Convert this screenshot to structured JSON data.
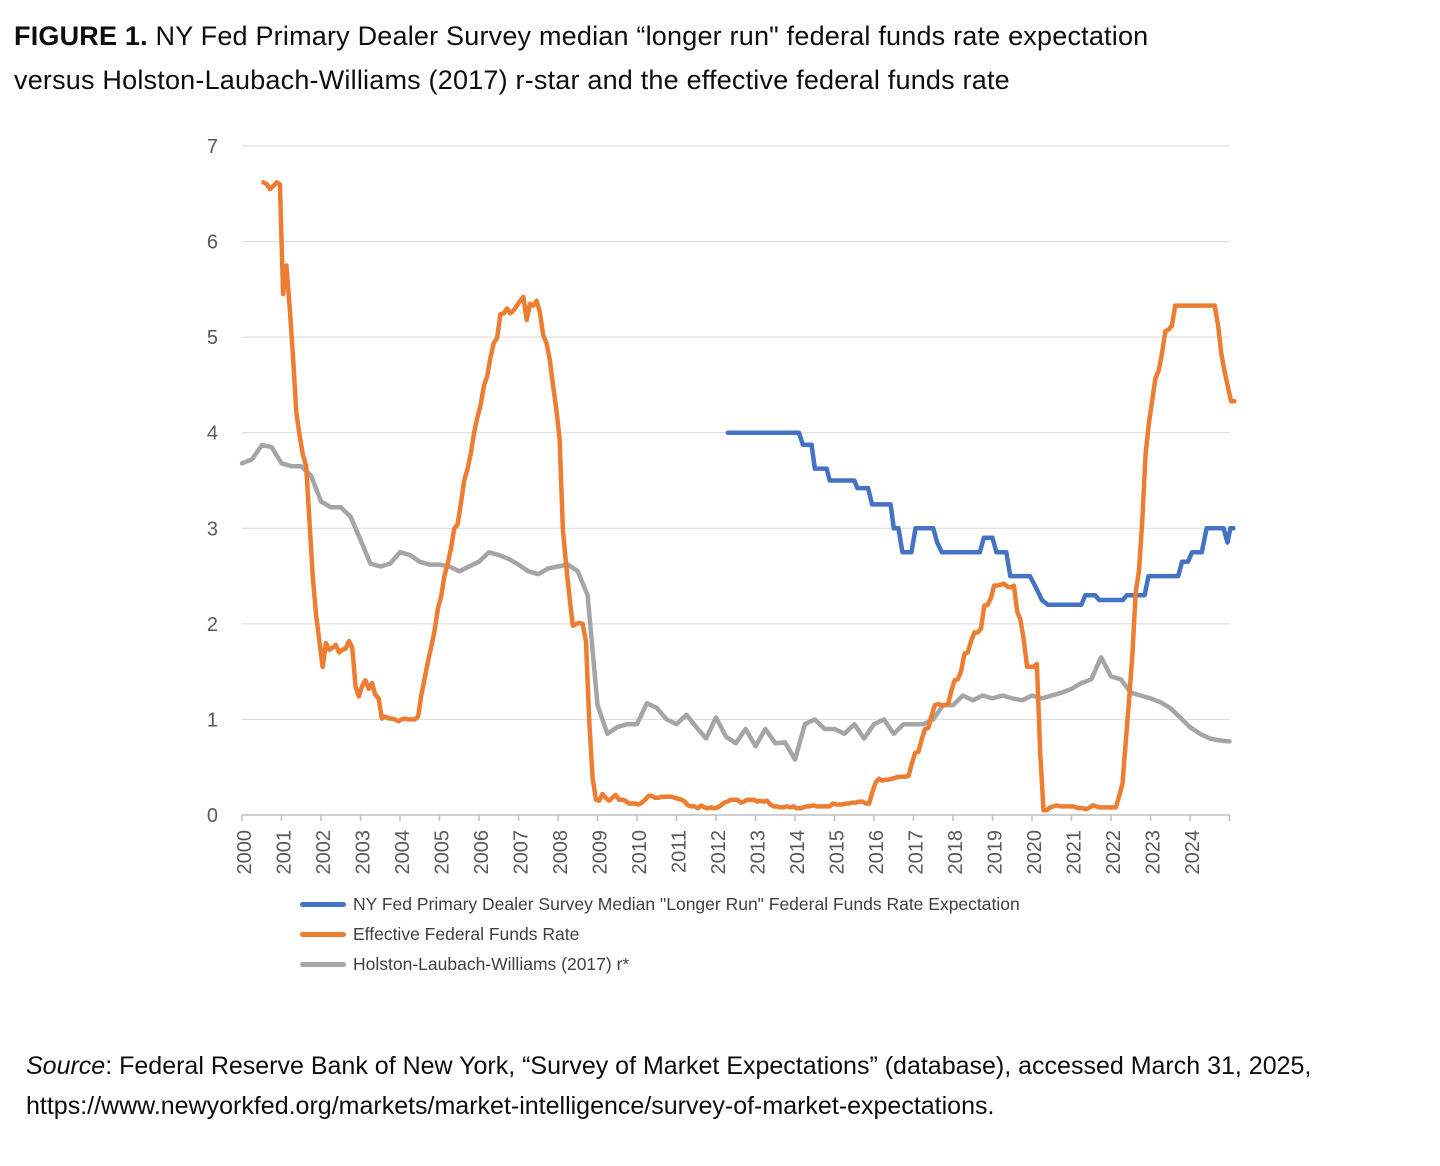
{
  "header": {
    "figure_label": "FIGURE 1.",
    "title_line1": "NY Fed Primary Dealer Survey median “longer run\" federal funds rate expectation",
    "title_line2": "versus Holston-Laubach-Williams (2017) r-star and the effective federal funds rate"
  },
  "source": {
    "label": "Source",
    "after_label": ": Federal Reserve Bank of New York, “Survey of Market Expectations” (database), accessed March 31, 2025,",
    "line2": "https://www.newyorkfed.org/markets/market-intelligence/survey-of-market-expectations."
  },
  "chart_data": {
    "type": "line",
    "title": "FIGURE 1. NY Fed Primary Dealer Survey median “longer run\" federal funds rate expectation versus Holston-Laubach-Williams (2017) r-star and the effective federal funds rate",
    "xlabel": "",
    "ylabel": "",
    "axis": {
      "y_min": 0,
      "y_max": 7,
      "y_ticks": [
        0,
        1,
        2,
        3,
        4,
        5,
        6,
        7
      ],
      "x_min": 2000,
      "x_max": 2025,
      "x_tick_years": [
        2000,
        2001,
        2002,
        2003,
        2004,
        2005,
        2006,
        2007,
        2008,
        2009,
        2010,
        2011,
        2012,
        2013,
        2014,
        2015,
        2016,
        2017,
        2018,
        2019,
        2020,
        2021,
        2022,
        2023,
        2024
      ],
      "grid": "horizontal",
      "legend_position": "bottom-left"
    },
    "colors": {
      "grid": "#d9d9d9",
      "axis": "#bfbfbf",
      "tick_label": "#595959"
    },
    "series": [
      {
        "id": "survey",
        "label": "NY Fed Primary Dealer Survey Median \"Longer Run\" Federal Funds Rate Expectation",
        "color": "#4472C4",
        "points": [
          [
            2012.3,
            4.0
          ],
          [
            2014.1,
            4.0
          ],
          [
            2014.2,
            3.875
          ],
          [
            2014.42,
            3.875
          ],
          [
            2014.5,
            3.625
          ],
          [
            2014.8,
            3.625
          ],
          [
            2014.88,
            3.5
          ],
          [
            2015.5,
            3.5
          ],
          [
            2015.58,
            3.42
          ],
          [
            2015.85,
            3.42
          ],
          [
            2015.95,
            3.25
          ],
          [
            2016.42,
            3.25
          ],
          [
            2016.5,
            3.0
          ],
          [
            2016.62,
            3.0
          ],
          [
            2016.72,
            2.75
          ],
          [
            2016.95,
            2.75
          ],
          [
            2017.05,
            3.0
          ],
          [
            2017.5,
            3.0
          ],
          [
            2017.6,
            2.85
          ],
          [
            2017.72,
            2.75
          ],
          [
            2018.68,
            2.75
          ],
          [
            2018.78,
            2.9
          ],
          [
            2019.0,
            2.9
          ],
          [
            2019.1,
            2.75
          ],
          [
            2019.35,
            2.75
          ],
          [
            2019.45,
            2.5
          ],
          [
            2019.95,
            2.5
          ],
          [
            2020.1,
            2.38
          ],
          [
            2020.25,
            2.25
          ],
          [
            2020.4,
            2.2
          ],
          [
            2021.25,
            2.2
          ],
          [
            2021.35,
            2.3
          ],
          [
            2021.6,
            2.3
          ],
          [
            2021.7,
            2.25
          ],
          [
            2022.3,
            2.25
          ],
          [
            2022.4,
            2.3
          ],
          [
            2022.85,
            2.3
          ],
          [
            2022.95,
            2.5
          ],
          [
            2023.7,
            2.5
          ],
          [
            2023.8,
            2.65
          ],
          [
            2023.95,
            2.65
          ],
          [
            2024.05,
            2.75
          ],
          [
            2024.3,
            2.75
          ],
          [
            2024.42,
            3.0
          ],
          [
            2024.85,
            3.0
          ],
          [
            2024.95,
            2.85
          ],
          [
            2025.02,
            3.0
          ],
          [
            2025.1,
            3.0
          ]
        ]
      },
      {
        "id": "effr",
        "label": "Effective Federal Funds Rate",
        "color": "#ED7D31",
        "start": 2000.5417,
        "step": 0.0833333,
        "values": [
          6.62,
          6.6,
          6.55,
          6.58,
          6.62,
          6.6,
          5.45,
          5.75,
          5.31,
          4.8,
          4.21,
          3.97,
          3.77,
          3.65,
          3.07,
          2.49,
          2.09,
          1.82,
          1.55,
          1.8,
          1.73,
          1.75,
          1.78,
          1.7,
          1.73,
          1.74,
          1.82,
          1.75,
          1.34,
          1.24,
          1.35,
          1.41,
          1.32,
          1.38,
          1.26,
          1.22,
          1.01,
          1.03,
          1.01,
          1.01,
          1.0,
          0.98,
          1.0,
          1.01,
          1.0,
          1.0,
          1.0,
          1.03,
          1.26,
          1.43,
          1.61,
          1.76,
          1.93,
          2.16,
          2.28,
          2.5,
          2.63,
          2.79,
          3.0,
          3.04,
          3.26,
          3.5,
          3.62,
          3.78,
          4.0,
          4.16,
          4.29,
          4.49,
          4.59,
          4.79,
          4.94,
          4.99,
          5.24,
          5.25,
          5.3,
          5.25,
          5.28,
          5.33,
          5.38,
          5.42,
          5.18,
          5.35,
          5.33,
          5.38,
          5.26,
          5.02,
          4.94,
          4.76,
          4.49,
          4.24,
          3.94,
          2.98,
          2.61,
          2.28,
          1.98,
          2.0,
          2.01,
          2.0,
          1.81,
          0.97,
          0.39,
          0.16,
          0.15,
          0.22,
          0.18,
          0.15,
          0.18,
          0.21,
          0.16,
          0.16,
          0.15,
          0.12,
          0.12,
          0.12,
          0.11,
          0.13,
          0.16,
          0.2,
          0.2,
          0.18,
          0.18,
          0.19,
          0.19,
          0.19,
          0.19,
          0.18,
          0.17,
          0.16,
          0.14,
          0.1,
          0.09,
          0.09,
          0.07,
          0.1,
          0.08,
          0.07,
          0.08,
          0.07,
          0.08,
          0.1,
          0.13,
          0.14,
          0.16,
          0.16,
          0.16,
          0.13,
          0.14,
          0.16,
          0.16,
          0.16,
          0.14,
          0.15,
          0.14,
          0.15,
          0.11,
          0.09,
          0.09,
          0.08,
          0.08,
          0.09,
          0.08,
          0.09,
          0.07,
          0.07,
          0.08,
          0.09,
          0.09,
          0.1,
          0.09,
          0.09,
          0.09,
          0.09,
          0.09,
          0.12,
          0.11,
          0.11,
          0.11,
          0.12,
          0.12,
          0.13,
          0.13,
          0.14,
          0.14,
          0.12,
          0.12,
          0.24,
          0.34,
          0.38,
          0.36,
          0.37,
          0.37,
          0.38,
          0.39,
          0.4,
          0.4,
          0.4,
          0.41,
          0.54,
          0.65,
          0.66,
          0.79,
          0.9,
          0.91,
          1.04,
          1.15,
          1.16,
          1.15,
          1.15,
          1.16,
          1.3,
          1.41,
          1.42,
          1.51,
          1.69,
          1.7,
          1.82,
          1.91,
          1.91,
          1.95,
          2.19,
          2.2,
          2.27,
          2.4,
          2.4,
          2.41,
          2.42,
          2.39,
          2.38,
          2.4,
          2.13,
          2.04,
          1.83,
          1.55,
          1.55,
          1.55,
          1.58,
          0.65,
          0.05,
          0.05,
          0.08,
          0.09,
          0.1,
          0.09,
          0.09,
          0.09,
          0.09,
          0.09,
          0.08,
          0.07,
          0.07,
          0.06,
          0.08,
          0.1,
          0.09,
          0.08,
          0.08,
          0.08,
          0.08,
          0.08,
          0.08,
          0.2,
          0.33,
          0.77,
          1.21,
          1.68,
          2.33,
          2.56,
          3.08,
          3.78,
          4.1,
          4.33,
          4.57,
          4.65,
          4.83,
          5.06,
          5.08,
          5.12,
          5.33,
          5.33,
          5.33,
          5.33,
          5.33,
          5.33,
          5.33,
          5.33,
          5.33,
          5.33,
          5.33,
          5.33,
          5.33,
          5.13,
          4.83,
          4.64,
          4.48,
          4.33,
          4.33
        ]
      },
      {
        "id": "hlw",
        "label": "Holston-Laubach-Williams (2017) r*",
        "color": "#A5A5A5",
        "start": 2000.0,
        "step": 0.25,
        "values": [
          3.68,
          3.72,
          3.87,
          3.85,
          3.68,
          3.65,
          3.65,
          3.55,
          3.28,
          3.22,
          3.22,
          3.12,
          2.88,
          2.63,
          2.6,
          2.63,
          2.75,
          2.72,
          2.65,
          2.62,
          2.62,
          2.6,
          2.55,
          2.6,
          2.65,
          2.75,
          2.72,
          2.68,
          2.62,
          2.55,
          2.52,
          2.58,
          2.6,
          2.62,
          2.55,
          2.3,
          1.15,
          0.85,
          0.92,
          0.95,
          0.95,
          1.17,
          1.12,
          1.0,
          0.95,
          1.05,
          0.92,
          0.8,
          1.02,
          0.82,
          0.75,
          0.9,
          0.72,
          0.9,
          0.75,
          0.76,
          0.58,
          0.95,
          1.0,
          0.9,
          0.9,
          0.85,
          0.95,
          0.8,
          0.95,
          1.0,
          0.85,
          0.95,
          0.95,
          0.95,
          1.0,
          1.15,
          1.15,
          1.25,
          1.2,
          1.25,
          1.22,
          1.25,
          1.22,
          1.2,
          1.25,
          1.22,
          1.25,
          1.28,
          1.32,
          1.38,
          1.42,
          1.65,
          1.45,
          1.42,
          1.28,
          1.25,
          1.22,
          1.18,
          1.12,
          1.02,
          0.92,
          0.85,
          0.8,
          0.78,
          0.77
        ]
      }
    ]
  }
}
